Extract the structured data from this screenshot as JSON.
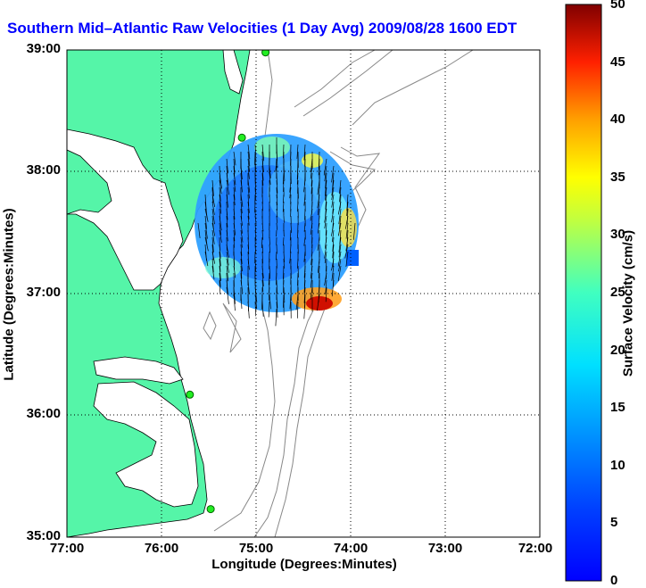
{
  "title": "Southern Mid–Atlantic Raw Velocities (1 Day Avg) 2009/08/28 1600 EDT",
  "map": {
    "xlabel": "Longitude (Degrees:Minutes)",
    "ylabel": "Latitude (Degrees:Minutes)",
    "x_ticks": [
      "77:00",
      "76:00",
      "75:00",
      "74:00",
      "73:00",
      "72:00"
    ],
    "y_ticks": [
      "39:00",
      "38:00",
      "37:00",
      "36:00",
      "35:00"
    ],
    "land_color": "#55f5a8",
    "water_color": "#ffffff",
    "bathymetry_color": "#888888",
    "grid": "dotted"
  },
  "colorbar": {
    "label": "Surface Velocity (cm/s)",
    "ticks": [
      "0",
      "5",
      "10",
      "15",
      "20",
      "25",
      "30",
      "35",
      "40",
      "45",
      "50"
    ],
    "range": [
      0,
      50
    ],
    "colormap": "jet"
  },
  "stations": [
    {
      "lon": -74.9,
      "lat": 38.98
    },
    {
      "lon": -75.15,
      "lat": 38.28
    },
    {
      "lon": -75.7,
      "lat": 36.17
    },
    {
      "lon": -75.48,
      "lat": 35.23
    }
  ]
}
